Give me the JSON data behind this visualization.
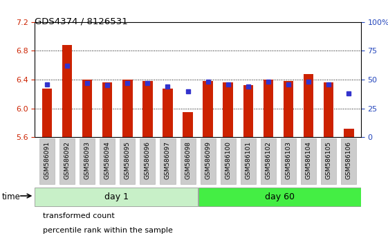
{
  "title": "GDS4374 / 8126531",
  "samples": [
    "GSM586091",
    "GSM586092",
    "GSM586093",
    "GSM586094",
    "GSM586095",
    "GSM586096",
    "GSM586097",
    "GSM586098",
    "GSM586099",
    "GSM586100",
    "GSM586101",
    "GSM586102",
    "GSM586103",
    "GSM586104",
    "GSM586105",
    "GSM586106"
  ],
  "transformed_count": [
    6.28,
    6.88,
    6.4,
    6.36,
    6.4,
    6.38,
    6.28,
    5.95,
    6.38,
    6.36,
    6.32,
    6.4,
    6.38,
    6.48,
    6.36,
    5.72
  ],
  "percentile_rank": [
    46,
    62,
    47,
    45,
    47,
    47,
    44,
    40,
    48,
    46,
    44,
    48,
    46,
    48,
    46,
    38
  ],
  "day1_count": 8,
  "day60_count": 8,
  "ylim_left": [
    5.6,
    7.2
  ],
  "ylim_right": [
    0,
    100
  ],
  "yticks_left": [
    5.6,
    6.0,
    6.4,
    6.8,
    7.2
  ],
  "yticks_right": [
    0,
    25,
    50,
    75,
    100
  ],
  "bar_color": "#cc2200",
  "percentile_color": "#3333cc",
  "bar_width": 0.5,
  "percentile_marker_size": 5,
  "grid_color": "#000000",
  "bg_color": "#ffffff",
  "tick_bg_color": "#cccccc",
  "day1_bg_color": "#c8f0c8",
  "day60_bg_color": "#44ee44",
  "legend_red_label": "transformed count",
  "legend_blue_label": "percentile rank within the sample",
  "time_label": "time",
  "day1_label": "day 1",
  "day60_label": "day 60"
}
